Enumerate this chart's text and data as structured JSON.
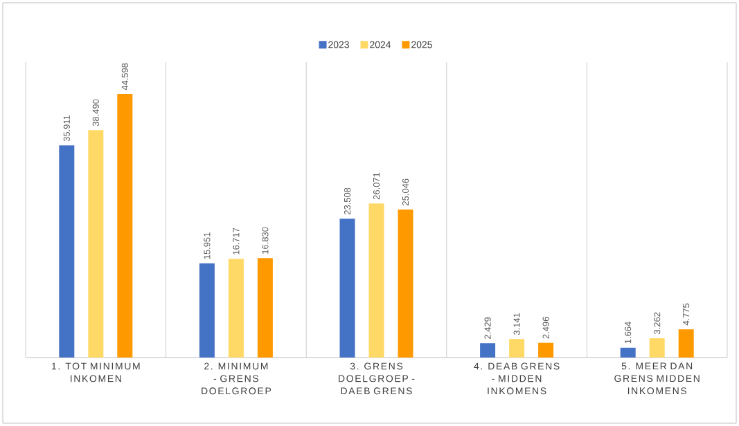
{
  "chart_data": {
    "type": "bar",
    "categories": [
      "1. TOT MINIMUM INKOMEN",
      "2. MINIMUM - GRENS DOELGROEP",
      "3. GRENS DOELGROEP - DAEB GRENS",
      "4. DEAB GRENS - MIDDEN INKOMENS",
      "5. MEER DAN GRENS MIDDEN INKOMENS"
    ],
    "series": [
      {
        "name": "2023",
        "color": "#4472c4",
        "values": [
          35911,
          15951,
          23508,
          2429,
          1664
        ],
        "value_labels": [
          "35.911",
          "15.951",
          "23.508",
          "2.429",
          "1.664"
        ]
      },
      {
        "name": "2024",
        "color": "#ffd966",
        "values": [
          38490,
          16717,
          26071,
          3141,
          3262
        ],
        "value_labels": [
          "38.490",
          "16.717",
          "26.071",
          "3.141",
          "3.262"
        ]
      },
      {
        "name": "2025",
        "color": "#ff9900",
        "values": [
          44598,
          16830,
          25046,
          2496,
          4775
        ],
        "value_labels": [
          "44.598",
          "16.830",
          "25.046",
          "2.496",
          "4.775"
        ]
      }
    ],
    "ylim": [
      0,
      50000
    ],
    "grid": "x",
    "legend": "top",
    "tick_labels": "x"
  }
}
